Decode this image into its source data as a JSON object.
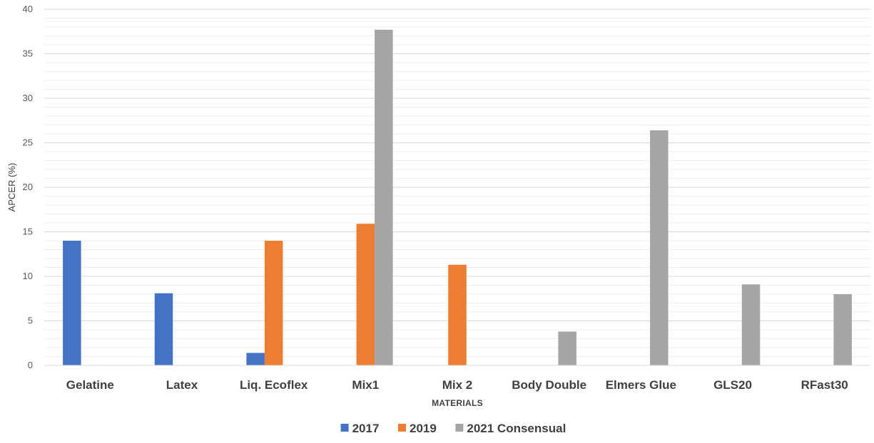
{
  "chart_data": {
    "type": "bar",
    "title": "",
    "xlabel": "MATERIALS",
    "ylabel": "APCER (%)",
    "ylim": [
      0,
      40
    ],
    "yticks": [
      0,
      5,
      10,
      15,
      20,
      25,
      30,
      35,
      40
    ],
    "grid": true,
    "legend_position": "bottom",
    "categories": [
      "Gelatine",
      "Latex",
      "Liq. Ecoflex",
      "Mix1",
      "Mix 2",
      "Body Double",
      "Elmers Glue",
      "GLS20",
      "RFast30"
    ],
    "series": [
      {
        "name": "2017",
        "color": "#4472C4",
        "values": [
          14.0,
          8.1,
          1.4,
          null,
          null,
          null,
          null,
          null,
          null
        ]
      },
      {
        "name": "2019",
        "color": "#ED7D31",
        "values": [
          null,
          null,
          14.0,
          15.9,
          11.3,
          null,
          null,
          null,
          null
        ]
      },
      {
        "name": "2021 Consensual",
        "color": "#A5A5A5",
        "values": [
          null,
          null,
          null,
          37.7,
          null,
          3.8,
          26.4,
          9.1,
          8.0
        ]
      }
    ]
  }
}
